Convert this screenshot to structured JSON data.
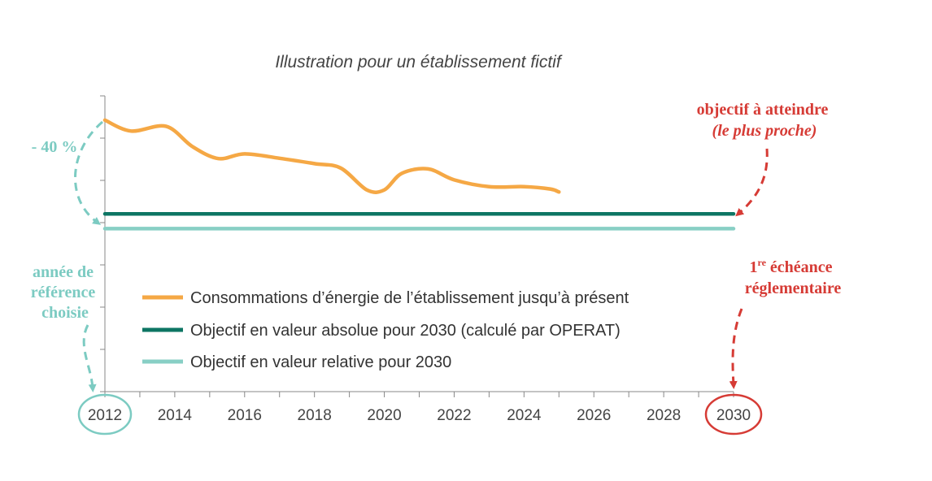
{
  "chart_data": {
    "type": "line",
    "title": "Illustration pour un établissement fictif",
    "xlabel": "",
    "ylabel": "",
    "x_ticks": [
      "2012",
      "2014",
      "2016",
      "2018",
      "2020",
      "2022",
      "2024",
      "2026",
      "2028",
      "2030"
    ],
    "xlim": [
      2012,
      2030
    ],
    "ylim": [
      0,
      100
    ],
    "grid": false,
    "legend_position": "inside-center",
    "series": [
      {
        "name": "Consommations d’énergie de l’établissement jusqu’à présent",
        "color": "#f5a845",
        "x": [
          2012,
          2012.75,
          2013.75,
          2014.5,
          2015.25,
          2016,
          2017,
          2018,
          2018.75,
          2019.5,
          2020,
          2020.5,
          2021.25,
          2022,
          2023,
          2024,
          2024.75,
          2025
        ],
        "y": [
          91.8,
          88.1,
          89.7,
          82.9,
          78.8,
          80.4,
          78.9,
          77.1,
          75.6,
          68.2,
          68.2,
          73.8,
          75.3,
          71.6,
          69.3,
          69.3,
          68.5,
          67.5
        ]
      },
      {
        "name": "Objectif en valeur absolue pour 2030 (calculé par OPERAT)",
        "color": "#0d7563",
        "x": [
          2012,
          2030
        ],
        "y": [
          60.1,
          60.1
        ]
      },
      {
        "name": "Objectif en valeur relative pour 2030",
        "color": "#88cfc5",
        "x": [
          2012,
          2030
        ],
        "y": [
          55.1,
          55.1
        ]
      }
    ]
  },
  "annotations": {
    "reduction": {
      "text": "- 40 %",
      "color": "#7ccbc2"
    },
    "reference_year": {
      "lines": [
        "année de",
        "référence",
        "choisie"
      ],
      "color": "#7ccbc2"
    },
    "target": {
      "line1": "objectif à atteindre",
      "line2": "(le plus proche)",
      "color": "#d63b35"
    },
    "deadline": {
      "ordinal": "1",
      "superscript": "re",
      "word": " échéance",
      "line2": "réglementaire",
      "color": "#d63b35"
    }
  }
}
